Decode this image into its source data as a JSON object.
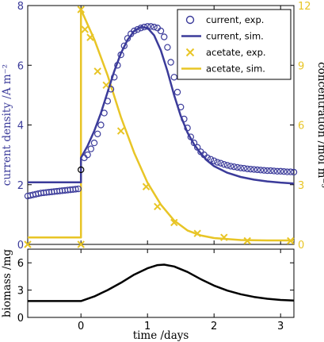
{
  "colors": {
    "current": "#3b3b9a",
    "acetate": "#e8c526",
    "biomass": "#000000",
    "axes": "#000000"
  },
  "chart_data": [
    {
      "type": "line",
      "xlim": [
        -0.8,
        3.2
      ],
      "ylim_left": [
        0,
        8
      ],
      "ylim_right": [
        0,
        12
      ],
      "yticks_left": [
        "0",
        "2",
        "4",
        "6",
        "8"
      ],
      "yticks_right": [
        "0",
        "3",
        "6",
        "9",
        "12"
      ],
      "ylabel_left": "current density /A m⁻²",
      "ylabel_right": "concentration /mol m⁻³",
      "legend_position": "top-right",
      "series": [
        {
          "name": "current, exp.",
          "axis": "left",
          "style": "markers-circle",
          "color_key": "current",
          "points": [
            [
              -0.8,
              1.62
            ],
            [
              -0.76,
              1.64
            ],
            [
              -0.72,
              1.66
            ],
            [
              -0.68,
              1.68
            ],
            [
              -0.64,
              1.7
            ],
            [
              -0.6,
              1.72
            ],
            [
              -0.56,
              1.73
            ],
            [
              -0.52,
              1.74
            ],
            [
              -0.48,
              1.75
            ],
            [
              -0.44,
              1.76
            ],
            [
              -0.4,
              1.77
            ],
            [
              -0.36,
              1.78
            ],
            [
              -0.32,
              1.79
            ],
            [
              -0.28,
              1.8
            ],
            [
              -0.24,
              1.81
            ],
            [
              -0.2,
              1.82
            ],
            [
              -0.16,
              1.83
            ],
            [
              -0.12,
              1.84
            ],
            [
              -0.08,
              1.85
            ],
            [
              -0.04,
              1.86
            ],
            [
              0.0,
              2.5
            ],
            [
              0.05,
              2.9
            ],
            [
              0.1,
              3.0
            ],
            [
              0.15,
              3.2
            ],
            [
              0.2,
              3.4
            ],
            [
              0.25,
              3.7
            ],
            [
              0.3,
              4.0
            ],
            [
              0.35,
              4.4
            ],
            [
              0.4,
              4.8
            ],
            [
              0.45,
              5.2
            ],
            [
              0.5,
              5.6
            ],
            [
              0.55,
              6.0
            ],
            [
              0.6,
              6.35
            ],
            [
              0.65,
              6.65
            ],
            [
              0.7,
              6.9
            ],
            [
              0.75,
              7.05
            ],
            [
              0.8,
              7.15
            ],
            [
              0.85,
              7.2
            ],
            [
              0.9,
              7.25
            ],
            [
              0.95,
              7.28
            ],
            [
              1.0,
              7.3
            ],
            [
              1.05,
              7.3
            ],
            [
              1.1,
              7.28
            ],
            [
              1.15,
              7.25
            ],
            [
              1.2,
              7.15
            ],
            [
              1.25,
              6.95
            ],
            [
              1.3,
              6.6
            ],
            [
              1.35,
              6.1
            ],
            [
              1.4,
              5.6
            ],
            [
              1.45,
              5.1
            ],
            [
              1.5,
              4.6
            ],
            [
              1.55,
              4.2
            ],
            [
              1.6,
              3.9
            ],
            [
              1.65,
              3.6
            ],
            [
              1.7,
              3.4
            ],
            [
              1.75,
              3.25
            ],
            [
              1.8,
              3.1
            ],
            [
              1.85,
              3.0
            ],
            [
              1.9,
              2.9
            ],
            [
              1.95,
              2.85
            ],
            [
              2.0,
              2.8
            ],
            [
              2.05,
              2.75
            ],
            [
              2.1,
              2.72
            ],
            [
              2.15,
              2.68
            ],
            [
              2.2,
              2.65
            ],
            [
              2.25,
              2.62
            ],
            [
              2.3,
              2.6
            ],
            [
              2.35,
              2.58
            ],
            [
              2.4,
              2.56
            ],
            [
              2.45,
              2.55
            ],
            [
              2.5,
              2.53
            ],
            [
              2.55,
              2.52
            ],
            [
              2.6,
              2.51
            ],
            [
              2.65,
              2.5
            ],
            [
              2.7,
              2.49
            ],
            [
              2.75,
              2.48
            ],
            [
              2.8,
              2.47
            ],
            [
              2.85,
              2.47
            ],
            [
              2.9,
              2.46
            ],
            [
              2.95,
              2.45
            ],
            [
              3.0,
              2.45
            ],
            [
              3.05,
              2.44
            ],
            [
              3.1,
              2.43
            ],
            [
              3.15,
              2.43
            ],
            [
              3.2,
              2.42
            ]
          ]
        },
        {
          "name": "current, sim.",
          "axis": "left",
          "style": "line",
          "color_key": "current",
          "points": [
            [
              -0.8,
              2.08
            ],
            [
              0.0,
              2.08
            ],
            [
              0.0,
              2.9
            ],
            [
              0.1,
              3.3
            ],
            [
              0.2,
              3.8
            ],
            [
              0.3,
              4.4
            ],
            [
              0.4,
              5.1
            ],
            [
              0.5,
              5.8
            ],
            [
              0.6,
              6.4
            ],
            [
              0.7,
              6.85
            ],
            [
              0.8,
              7.15
            ],
            [
              0.9,
              7.28
            ],
            [
              1.0,
              7.25
            ],
            [
              1.1,
              7.0
            ],
            [
              1.2,
              6.5
            ],
            [
              1.3,
              5.8
            ],
            [
              1.4,
              5.0
            ],
            [
              1.5,
              4.3
            ],
            [
              1.6,
              3.75
            ],
            [
              1.7,
              3.35
            ],
            [
              1.8,
              3.05
            ],
            [
              1.9,
              2.8
            ],
            [
              2.0,
              2.62
            ],
            [
              2.2,
              2.4
            ],
            [
              2.4,
              2.26
            ],
            [
              2.6,
              2.17
            ],
            [
              2.8,
              2.11
            ],
            [
              3.0,
              2.07
            ],
            [
              3.2,
              2.04
            ]
          ]
        },
        {
          "name": "acetate, exp.",
          "axis": "right",
          "style": "markers-x",
          "color_key": "acetate",
          "points": [
            [
              -0.8,
              0.0
            ],
            [
              0.0,
              0.0
            ],
            [
              0.0,
              11.8
            ],
            [
              0.06,
              10.8
            ],
            [
              0.14,
              10.4
            ],
            [
              0.25,
              8.7
            ],
            [
              0.38,
              8.0
            ],
            [
              0.6,
              5.7
            ],
            [
              0.98,
              2.9
            ],
            [
              1.15,
              1.9
            ],
            [
              1.4,
              1.1
            ],
            [
              1.75,
              0.55
            ],
            [
              2.15,
              0.35
            ],
            [
              2.5,
              0.18
            ],
            [
              3.15,
              0.18
            ]
          ]
        },
        {
          "name": "acetate, sim.",
          "axis": "right",
          "style": "line",
          "color_key": "acetate",
          "points": [
            [
              -0.8,
              0.35
            ],
            [
              0.0,
              0.35
            ],
            [
              0.0,
              11.8
            ],
            [
              0.2,
              10.3
            ],
            [
              0.4,
              8.5
            ],
            [
              0.6,
              6.4
            ],
            [
              0.8,
              4.6
            ],
            [
              1.0,
              3.1
            ],
            [
              1.2,
              2.0
            ],
            [
              1.4,
              1.2
            ],
            [
              1.6,
              0.7
            ],
            [
              1.8,
              0.45
            ],
            [
              2.0,
              0.32
            ],
            [
              2.4,
              0.22
            ],
            [
              2.8,
              0.2
            ],
            [
              3.2,
              0.2
            ]
          ]
        }
      ]
    },
    {
      "type": "line",
      "xlim": [
        -0.8,
        3.2
      ],
      "xticks": [
        "0",
        "1",
        "2",
        "3"
      ],
      "xlabel": "time /days",
      "ylim": [
        0,
        7.5
      ],
      "yticks": [
        "0",
        "3",
        "6"
      ],
      "ylabel": "biomass /mg",
      "series": [
        {
          "name": "biomass",
          "color_key": "biomass",
          "points": [
            [
              -0.8,
              1.8
            ],
            [
              0.0,
              1.8
            ],
            [
              0.2,
              2.3
            ],
            [
              0.4,
              3.0
            ],
            [
              0.6,
              3.8
            ],
            [
              0.8,
              4.7
            ],
            [
              1.0,
              5.4
            ],
            [
              1.15,
              5.75
            ],
            [
              1.25,
              5.8
            ],
            [
              1.4,
              5.6
            ],
            [
              1.6,
              5.0
            ],
            [
              1.8,
              4.2
            ],
            [
              2.0,
              3.5
            ],
            [
              2.2,
              2.95
            ],
            [
              2.4,
              2.55
            ],
            [
              2.6,
              2.25
            ],
            [
              2.8,
              2.05
            ],
            [
              3.0,
              1.92
            ],
            [
              3.2,
              1.85
            ]
          ]
        }
      ]
    }
  ]
}
